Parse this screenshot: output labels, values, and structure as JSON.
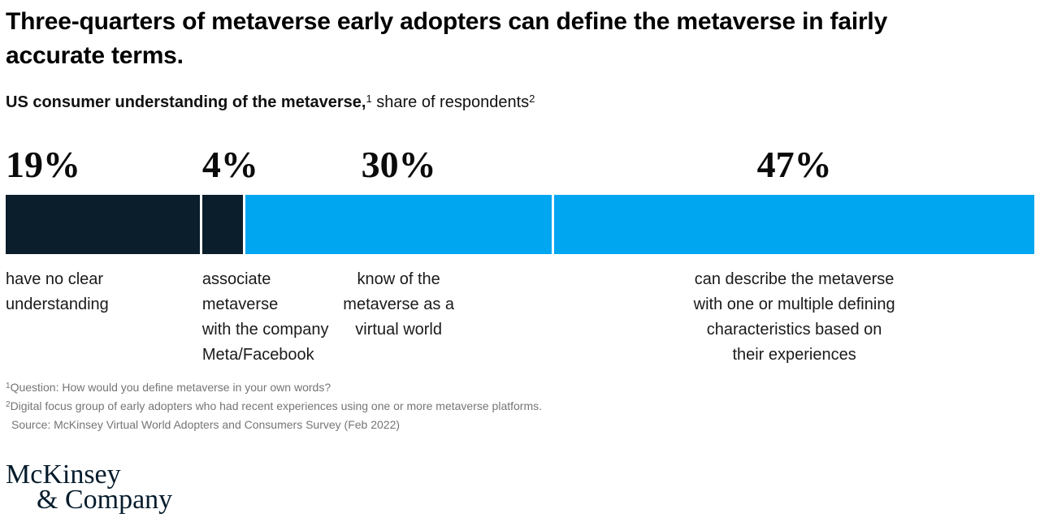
{
  "title": "Three-quarters of metaverse early adopters can define the metaverse in fairly\naccurate terms.",
  "subtitle": {
    "bold": "US consumer understanding of the metaverse,",
    "sup1": "1",
    "regular": " share of respondents",
    "sup2": "2"
  },
  "chart_data": {
    "type": "bar",
    "orientation": "horizontal-stacked",
    "unit": "% share of respondents",
    "total": 100,
    "title": "US consumer understanding of the metaverse",
    "subtitle": "share of respondents",
    "segments": [
      {
        "value": 19,
        "value_label": "19%",
        "color": "#0a1e2b",
        "caption": "have no clear\nunderstanding"
      },
      {
        "value": 4,
        "value_label": "4%",
        "color": "#0a1e2b",
        "caption": "associate\nmetaverse\nwith the company\nMeta/Facebook"
      },
      {
        "value": 30,
        "value_label": "30%",
        "color": "#00a6f0",
        "caption": "know of the\nmetaverse as a\nvirtual world"
      },
      {
        "value": 47,
        "value_label": "47%",
        "color": "#00a6f0",
        "caption": "can describe the metaverse\nwith one or multiple defining\ncharacteristics based on\ntheir experiences"
      }
    ]
  },
  "footnotes": {
    "fn1_sup": "1",
    "fn1_text": "Question: How would you define metaverse in your own words?",
    "fn2_sup": "2",
    "fn2_text": "Digital focus group of early adopters who had recent experiences using one or more metaverse platforms.",
    "source": "Source: McKinsey Virtual World Adopters and Consumers Survey (Feb 2022)"
  },
  "logo": {
    "line1": "McKinsey",
    "line2": "& Company"
  },
  "colors": {
    "dark_navy": "#0a1e2b",
    "light_blue": "#00a6f0",
    "footnote_gray": "#757575",
    "logo_navy": "#051c2c"
  }
}
